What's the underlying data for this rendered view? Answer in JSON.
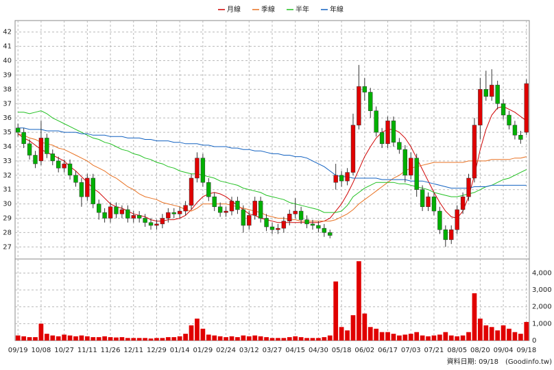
{
  "chart_data": [
    {
      "type": "candlestick",
      "categories": [
        "09/19",
        null,
        null,
        null,
        "10/08",
        null,
        null,
        null,
        "10/27",
        null,
        null,
        null,
        "11/11",
        null,
        null,
        null,
        "11/26",
        null,
        null,
        null,
        "12/11",
        null,
        null,
        null,
        "12/29",
        null,
        null,
        null,
        "01/14",
        null,
        null,
        null,
        "01/29",
        null,
        null,
        null,
        "02/24",
        null,
        null,
        null,
        "03/12",
        null,
        null,
        null,
        "03/27",
        null,
        null,
        null,
        "04/15",
        null,
        null,
        null,
        "04/30",
        null,
        null,
        null,
        "05/18",
        null,
        null,
        null,
        "06/02",
        null,
        null,
        null,
        "06/17",
        null,
        null,
        null,
        "07/03",
        null,
        null,
        null,
        "07/21",
        null,
        null,
        null,
        "08/05",
        null,
        null,
        null,
        "08/20",
        null,
        null,
        null,
        "09/04",
        null,
        null,
        null,
        "09/18"
      ],
      "open": [
        35.3,
        35.0,
        34.2,
        33.4,
        33.0,
        34.6,
        33.5,
        33.0,
        32.5,
        32.8,
        32.0,
        31.5,
        30.5,
        31.8,
        30.0,
        29.4,
        29.0,
        29.8,
        29.3,
        29.6,
        29.0,
        29.2,
        29.0,
        28.7,
        28.5,
        28.6,
        29.0,
        29.4,
        29.3,
        29.5,
        29.9,
        31.8,
        33.2,
        31.5,
        30.5,
        29.8,
        29.4,
        29.5,
        30.2,
        29.6,
        28.5,
        29.2,
        30.2,
        29.0,
        28.4,
        28.2,
        28.3,
        28.8,
        29.3,
        29.5,
        28.9,
        28.6,
        28.5,
        28.3,
        28.0,
        31.5,
        32.0,
        31.6,
        32.2,
        35.5,
        38.2,
        37.8,
        36.5,
        35.0,
        34.2,
        35.8,
        34.3,
        33.8,
        32.0,
        33.2,
        31.0,
        29.8,
        30.5,
        29.5,
        28.2,
        27.5,
        28.2,
        29.6,
        30.5,
        31.8,
        35.5,
        38.0,
        37.5,
        38.3,
        37.0,
        36.2,
        35.5,
        34.8,
        35.0
      ],
      "high": [
        35.6,
        35.3,
        34.5,
        33.7,
        35.8,
        34.9,
        33.8,
        33.3,
        33.1,
        33.1,
        32.3,
        31.8,
        32.1,
        32.1,
        30.3,
        29.7,
        30.1,
        30.1,
        29.9,
        29.9,
        29.5,
        29.5,
        29.3,
        29.0,
        28.9,
        29.3,
        29.7,
        29.7,
        29.8,
        30.2,
        32.1,
        33.6,
        33.5,
        31.8,
        30.8,
        30.1,
        29.8,
        30.5,
        30.5,
        29.9,
        29.5,
        30.5,
        30.5,
        29.3,
        28.7,
        28.6,
        29.1,
        29.6,
        30.4,
        29.8,
        29.2,
        28.9,
        28.8,
        28.6,
        28.2,
        32.8,
        32.3,
        32.5,
        36.3,
        39.7,
        38.8,
        38.1,
        36.8,
        35.3,
        36.1,
        36.1,
        34.6,
        34.1,
        33.6,
        33.5,
        31.3,
        30.8,
        30.8,
        29.8,
        28.5,
        28.5,
        29.9,
        30.8,
        32.1,
        36.0,
        38.8,
        39.3,
        39.4,
        38.6,
        37.3,
        36.5,
        35.8,
        35.1,
        38.7
      ],
      "low": [
        34.7,
        33.9,
        33.1,
        32.5,
        32.7,
        33.2,
        32.7,
        32.2,
        32.2,
        31.7,
        31.2,
        29.8,
        30.2,
        29.7,
        28.9,
        28.7,
        28.7,
        29.0,
        29.0,
        28.7,
        28.7,
        28.7,
        28.4,
        28.2,
        28.2,
        28.3,
        28.7,
        29.0,
        29.0,
        29.2,
        29.6,
        31.5,
        31.2,
        30.2,
        29.5,
        29.1,
        29.1,
        29.2,
        29.3,
        28.0,
        28.2,
        28.9,
        28.7,
        28.1,
        27.9,
        27.9,
        28.0,
        28.5,
        29.0,
        28.6,
        28.3,
        28.2,
        28.0,
        27.7,
        27.6,
        31.0,
        31.2,
        31.3,
        32.0,
        35.2,
        37.2,
        36.0,
        34.7,
        33.9,
        33.9,
        34.0,
        33.5,
        31.5,
        31.7,
        30.5,
        29.5,
        29.5,
        29.2,
        27.9,
        27.0,
        27.2,
        27.9,
        29.3,
        30.2,
        31.5,
        34.5,
        37.2,
        37.2,
        36.6,
        35.9,
        35.2,
        34.5,
        34.2,
        34.8
      ],
      "close": [
        35.0,
        34.2,
        33.4,
        32.8,
        34.6,
        33.5,
        33.0,
        32.5,
        32.8,
        32.0,
        31.5,
        30.5,
        31.8,
        30.0,
        29.4,
        29.0,
        29.8,
        29.3,
        29.6,
        29.0,
        29.2,
        29.0,
        28.7,
        28.5,
        28.6,
        29.0,
        29.4,
        29.3,
        29.5,
        29.9,
        31.8,
        33.2,
        31.5,
        30.5,
        29.8,
        29.4,
        29.5,
        30.2,
        29.6,
        28.5,
        29.2,
        30.2,
        29.0,
        28.4,
        28.2,
        28.3,
        28.8,
        29.3,
        29.5,
        28.9,
        28.6,
        28.5,
        28.3,
        28.0,
        27.8,
        32.0,
        31.6,
        32.2,
        35.5,
        38.2,
        37.8,
        36.5,
        35.0,
        34.2,
        35.8,
        34.3,
        33.8,
        32.0,
        33.2,
        31.0,
        29.8,
        30.5,
        29.5,
        28.2,
        27.5,
        28.2,
        29.6,
        30.5,
        31.8,
        35.5,
        38.0,
        37.5,
        38.3,
        37.0,
        36.2,
        35.5,
        34.8,
        34.5,
        38.4
      ],
      "up_color": "#e00000",
      "down_color": "#00b000",
      "series": [
        {
          "name": "月線",
          "color": "#d00000",
          "values": [
            34.9,
            34.6,
            34.4,
            34.1,
            33.8,
            33.6,
            33.4,
            33.2,
            33.0,
            32.6,
            32.3,
            31.9,
            31.5,
            31.1,
            30.8,
            30.4,
            30.0,
            29.8,
            29.7,
            29.5,
            29.3,
            29.2,
            29.1,
            28.9,
            28.8,
            28.8,
            28.9,
            28.9,
            29.0,
            29.2,
            29.6,
            30.1,
            30.5,
            30.7,
            30.8,
            30.7,
            30.5,
            30.2,
            29.9,
            29.6,
            29.3,
            29.2,
            29.0,
            28.9,
            28.8,
            28.7,
            28.7,
            28.7,
            28.7,
            28.7,
            28.7,
            28.7,
            28.7,
            28.8,
            29.0,
            29.5,
            30.0,
            30.7,
            31.5,
            32.4,
            33.3,
            34.0,
            34.6,
            35.0,
            35.2,
            35.2,
            35.0,
            34.6,
            34.0,
            33.2,
            32.4,
            31.6,
            30.8,
            30.1,
            29.5,
            29.1,
            29.0,
            29.5,
            30.5,
            32.0,
            33.8,
            35.2,
            36.2,
            36.7,
            36.8,
            36.6,
            36.4,
            36.1,
            35.8
          ]
        },
        {
          "name": "季線",
          "color": "#e87020",
          "values": [
            34.9,
            34.8,
            34.6,
            34.5,
            34.3,
            34.2,
            34.1,
            33.9,
            33.8,
            33.6,
            33.4,
            33.2,
            33.0,
            32.7,
            32.5,
            32.3,
            32.0,
            31.8,
            31.5,
            31.2,
            31.0,
            30.7,
            30.5,
            30.4,
            30.3,
            30.1,
            30.0,
            29.9,
            29.8,
            29.6,
            29.5,
            29.7,
            30.0,
            30.0,
            30.0,
            30.0,
            30.0,
            29.9,
            29.8,
            29.7,
            29.6,
            29.5,
            29.4,
            29.2,
            29.1,
            29.0,
            29.0,
            28.9,
            28.9,
            28.8,
            28.8,
            28.8,
            28.8,
            28.8,
            28.8,
            28.9,
            29.1,
            29.3,
            29.6,
            30.0,
            30.3,
            30.6,
            30.9,
            31.2,
            31.5,
            31.8,
            32.0,
            32.3,
            32.5,
            32.6,
            32.7,
            32.8,
            32.9,
            32.9,
            32.9,
            32.9,
            32.9,
            32.9,
            33.0,
            33.0,
            33.0,
            33.0,
            33.1,
            33.1,
            33.1,
            33.1,
            33.2,
            33.2,
            33.3
          ]
        },
        {
          "name": "半年",
          "color": "#20c020",
          "values": [
            36.4,
            36.4,
            36.3,
            36.4,
            36.5,
            36.3,
            36.0,
            35.8,
            35.6,
            35.4,
            35.2,
            35.0,
            34.8,
            34.6,
            34.5,
            34.3,
            34.2,
            34.0,
            33.8,
            33.7,
            33.5,
            33.4,
            33.2,
            33.1,
            32.9,
            32.8,
            32.6,
            32.5,
            32.3,
            32.2,
            32.1,
            32.1,
            32.0,
            31.9,
            31.8,
            31.6,
            31.5,
            31.4,
            31.3,
            31.1,
            31.0,
            30.9,
            30.8,
            30.6,
            30.5,
            30.4,
            30.3,
            30.1,
            30.0,
            29.9,
            29.8,
            29.7,
            29.6,
            29.4,
            29.4,
            29.4,
            29.5,
            29.9,
            30.5,
            30.8,
            31.1,
            31.3,
            31.5,
            31.5,
            31.5,
            31.5,
            31.4,
            31.4,
            31.3,
            31.2,
            31.1,
            31.0,
            30.8,
            30.7,
            30.6,
            30.5,
            30.5,
            30.6,
            30.7,
            30.8,
            31.0,
            31.2,
            31.3,
            31.5,
            31.7,
            31.8,
            32.0,
            32.2,
            32.4
          ]
        },
        {
          "name": "年線",
          "color": "#1060c0",
          "values": [
            35.3,
            35.3,
            35.2,
            35.2,
            35.2,
            35.1,
            35.1,
            35.1,
            35.0,
            35.0,
            35.0,
            34.9,
            34.9,
            34.8,
            34.8,
            34.8,
            34.7,
            34.7,
            34.7,
            34.6,
            34.6,
            34.6,
            34.5,
            34.5,
            34.4,
            34.4,
            34.4,
            34.3,
            34.3,
            34.2,
            34.2,
            34.2,
            34.1,
            34.1,
            34.0,
            34.0,
            34.0,
            33.9,
            33.9,
            33.8,
            33.8,
            33.7,
            33.7,
            33.6,
            33.5,
            33.5,
            33.4,
            33.4,
            33.3,
            33.3,
            33.2,
            33.0,
            32.8,
            32.6,
            32.3,
            32.0,
            31.9,
            31.9,
            31.8,
            31.8,
            31.8,
            31.8,
            31.8,
            31.7,
            31.7,
            31.7,
            31.7,
            31.7,
            31.6,
            31.6,
            31.6,
            31.5,
            31.4,
            31.3,
            31.2,
            31.1,
            31.1,
            31.1,
            31.1,
            31.2,
            31.2,
            31.2,
            31.3,
            31.3,
            31.3,
            31.3,
            31.3,
            31.3,
            31.3
          ]
        }
      ],
      "ylim": [
        26.25,
        42.8
      ],
      "yticks": [
        27,
        28,
        29,
        30,
        31,
        32,
        33,
        34,
        35,
        36,
        37,
        38,
        39,
        40,
        41,
        42
      ],
      "grid": true
    },
    {
      "type": "bar",
      "color": "#e00000",
      "values": [
        300,
        250,
        200,
        200,
        1000,
        400,
        300,
        250,
        350,
        300,
        250,
        300,
        250,
        200,
        200,
        250,
        200,
        180,
        200,
        150,
        150,
        150,
        150,
        120,
        150,
        150,
        200,
        200,
        250,
        400,
        900,
        1300,
        700,
        350,
        300,
        250,
        200,
        250,
        200,
        300,
        250,
        300,
        250,
        200,
        150,
        150,
        150,
        200,
        250,
        200,
        150,
        150,
        150,
        200,
        300,
        3500,
        800,
        600,
        1500,
        4700,
        1600,
        800,
        700,
        500,
        500,
        400,
        300,
        350,
        400,
        500,
        300,
        250,
        300,
        350,
        500,
        300,
        250,
        300,
        500,
        2800,
        1300,
        900,
        800,
        600,
        900,
        700,
        500,
        400,
        1100
      ],
      "ylim": [
        0,
        4750
      ],
      "yticks": [
        0,
        {
          "value": 1000,
          "label": "1,000"
        },
        {
          "value": 2000,
          "label": "2,000"
        },
        {
          "value": 3000,
          "label": "3,000"
        },
        {
          "value": 4000,
          "label": "4,000"
        }
      ],
      "grid": true,
      "date_note": "資料日期: 09/18",
      "source": "(Goodinfo.tw)"
    }
  ]
}
